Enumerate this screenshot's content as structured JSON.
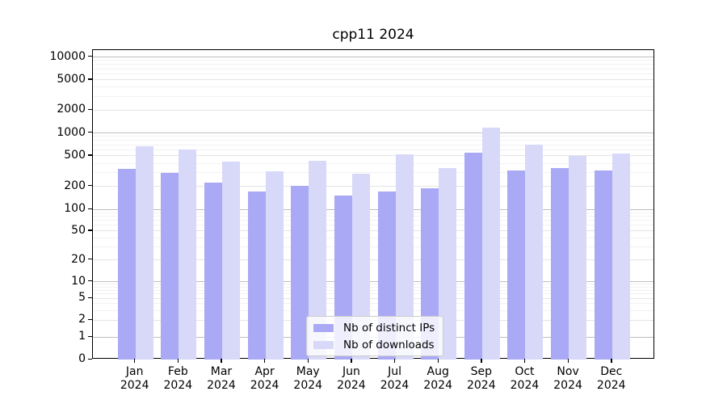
{
  "chart_data": {
    "type": "bar",
    "title": "cpp11 2024",
    "yscale": "symlog (logarithmic above 1, linear 0-1)",
    "grid": "horizontal",
    "legend_position": "bottom-center-inside",
    "ylim": [
      0,
      12000
    ],
    "yticks": [
      0,
      1,
      2,
      5,
      10,
      20,
      50,
      100,
      200,
      500,
      1000,
      2000,
      5000,
      10000
    ],
    "categories": [
      {
        "month": "Jan",
        "year": "2024"
      },
      {
        "month": "Feb",
        "year": "2024"
      },
      {
        "month": "Mar",
        "year": "2024"
      },
      {
        "month": "Apr",
        "year": "2024"
      },
      {
        "month": "May",
        "year": "2024"
      },
      {
        "month": "Jun",
        "year": "2024"
      },
      {
        "month": "Jul",
        "year": "2024"
      },
      {
        "month": "Aug",
        "year": "2024"
      },
      {
        "month": "Sep",
        "year": "2024"
      },
      {
        "month": "Oct",
        "year": "2024"
      },
      {
        "month": "Nov",
        "year": "2024"
      },
      {
        "month": "Dec",
        "year": "2024"
      }
    ],
    "series": [
      {
        "name": "Nb of distinct IPs",
        "color": "#a9a9f5",
        "values": [
          335,
          297,
          222,
          172,
          201,
          153,
          173,
          190,
          555,
          324,
          344,
          322
        ]
      },
      {
        "name": "Nb of downloads",
        "color": "#d8d8f9",
        "values": [
          665,
          607,
          418,
          316,
          428,
          292,
          520,
          345,
          1160,
          697,
          499,
          541
        ]
      }
    ]
  }
}
